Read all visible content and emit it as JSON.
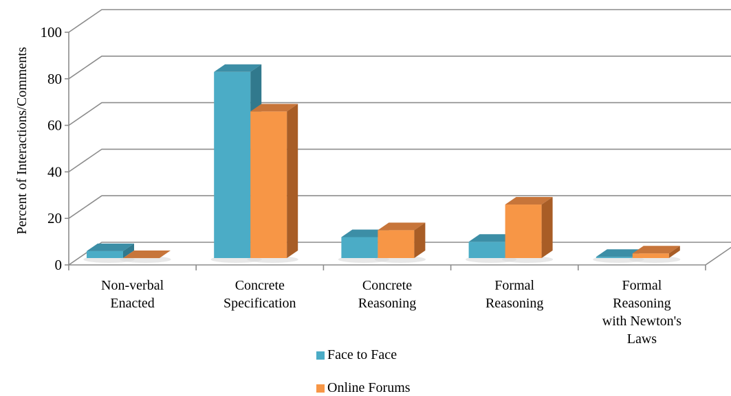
{
  "chart_data": {
    "type": "bar",
    "title": "",
    "xlabel": "",
    "ylabel": "Percent of Interactions/Comments",
    "ylim": [
      0,
      100
    ],
    "yticks": [
      0,
      20,
      40,
      60,
      80,
      100
    ],
    "grid": true,
    "legend_position": "bottom",
    "categories": [
      [
        "Non-verbal",
        "Enacted"
      ],
      [
        "Concrete",
        "Specification"
      ],
      [
        "Concrete",
        "Reasoning"
      ],
      [
        "Formal",
        "Reasoning"
      ],
      [
        "Formal",
        "Reasoning",
        "with Newton's",
        "Laws"
      ]
    ],
    "series": [
      {
        "name": "Face to Face",
        "values": [
          3,
          80,
          9,
          7,
          0.5
        ],
        "color_front": "#4BACC6",
        "color_top": "#3C8EA6",
        "color_side": "#31798D"
      },
      {
        "name": "Online Forums",
        "values": [
          0,
          63,
          12,
          23,
          2
        ],
        "color_front": "#F79646",
        "color_top": "#C7753A",
        "color_side": "#A85D26"
      }
    ]
  }
}
